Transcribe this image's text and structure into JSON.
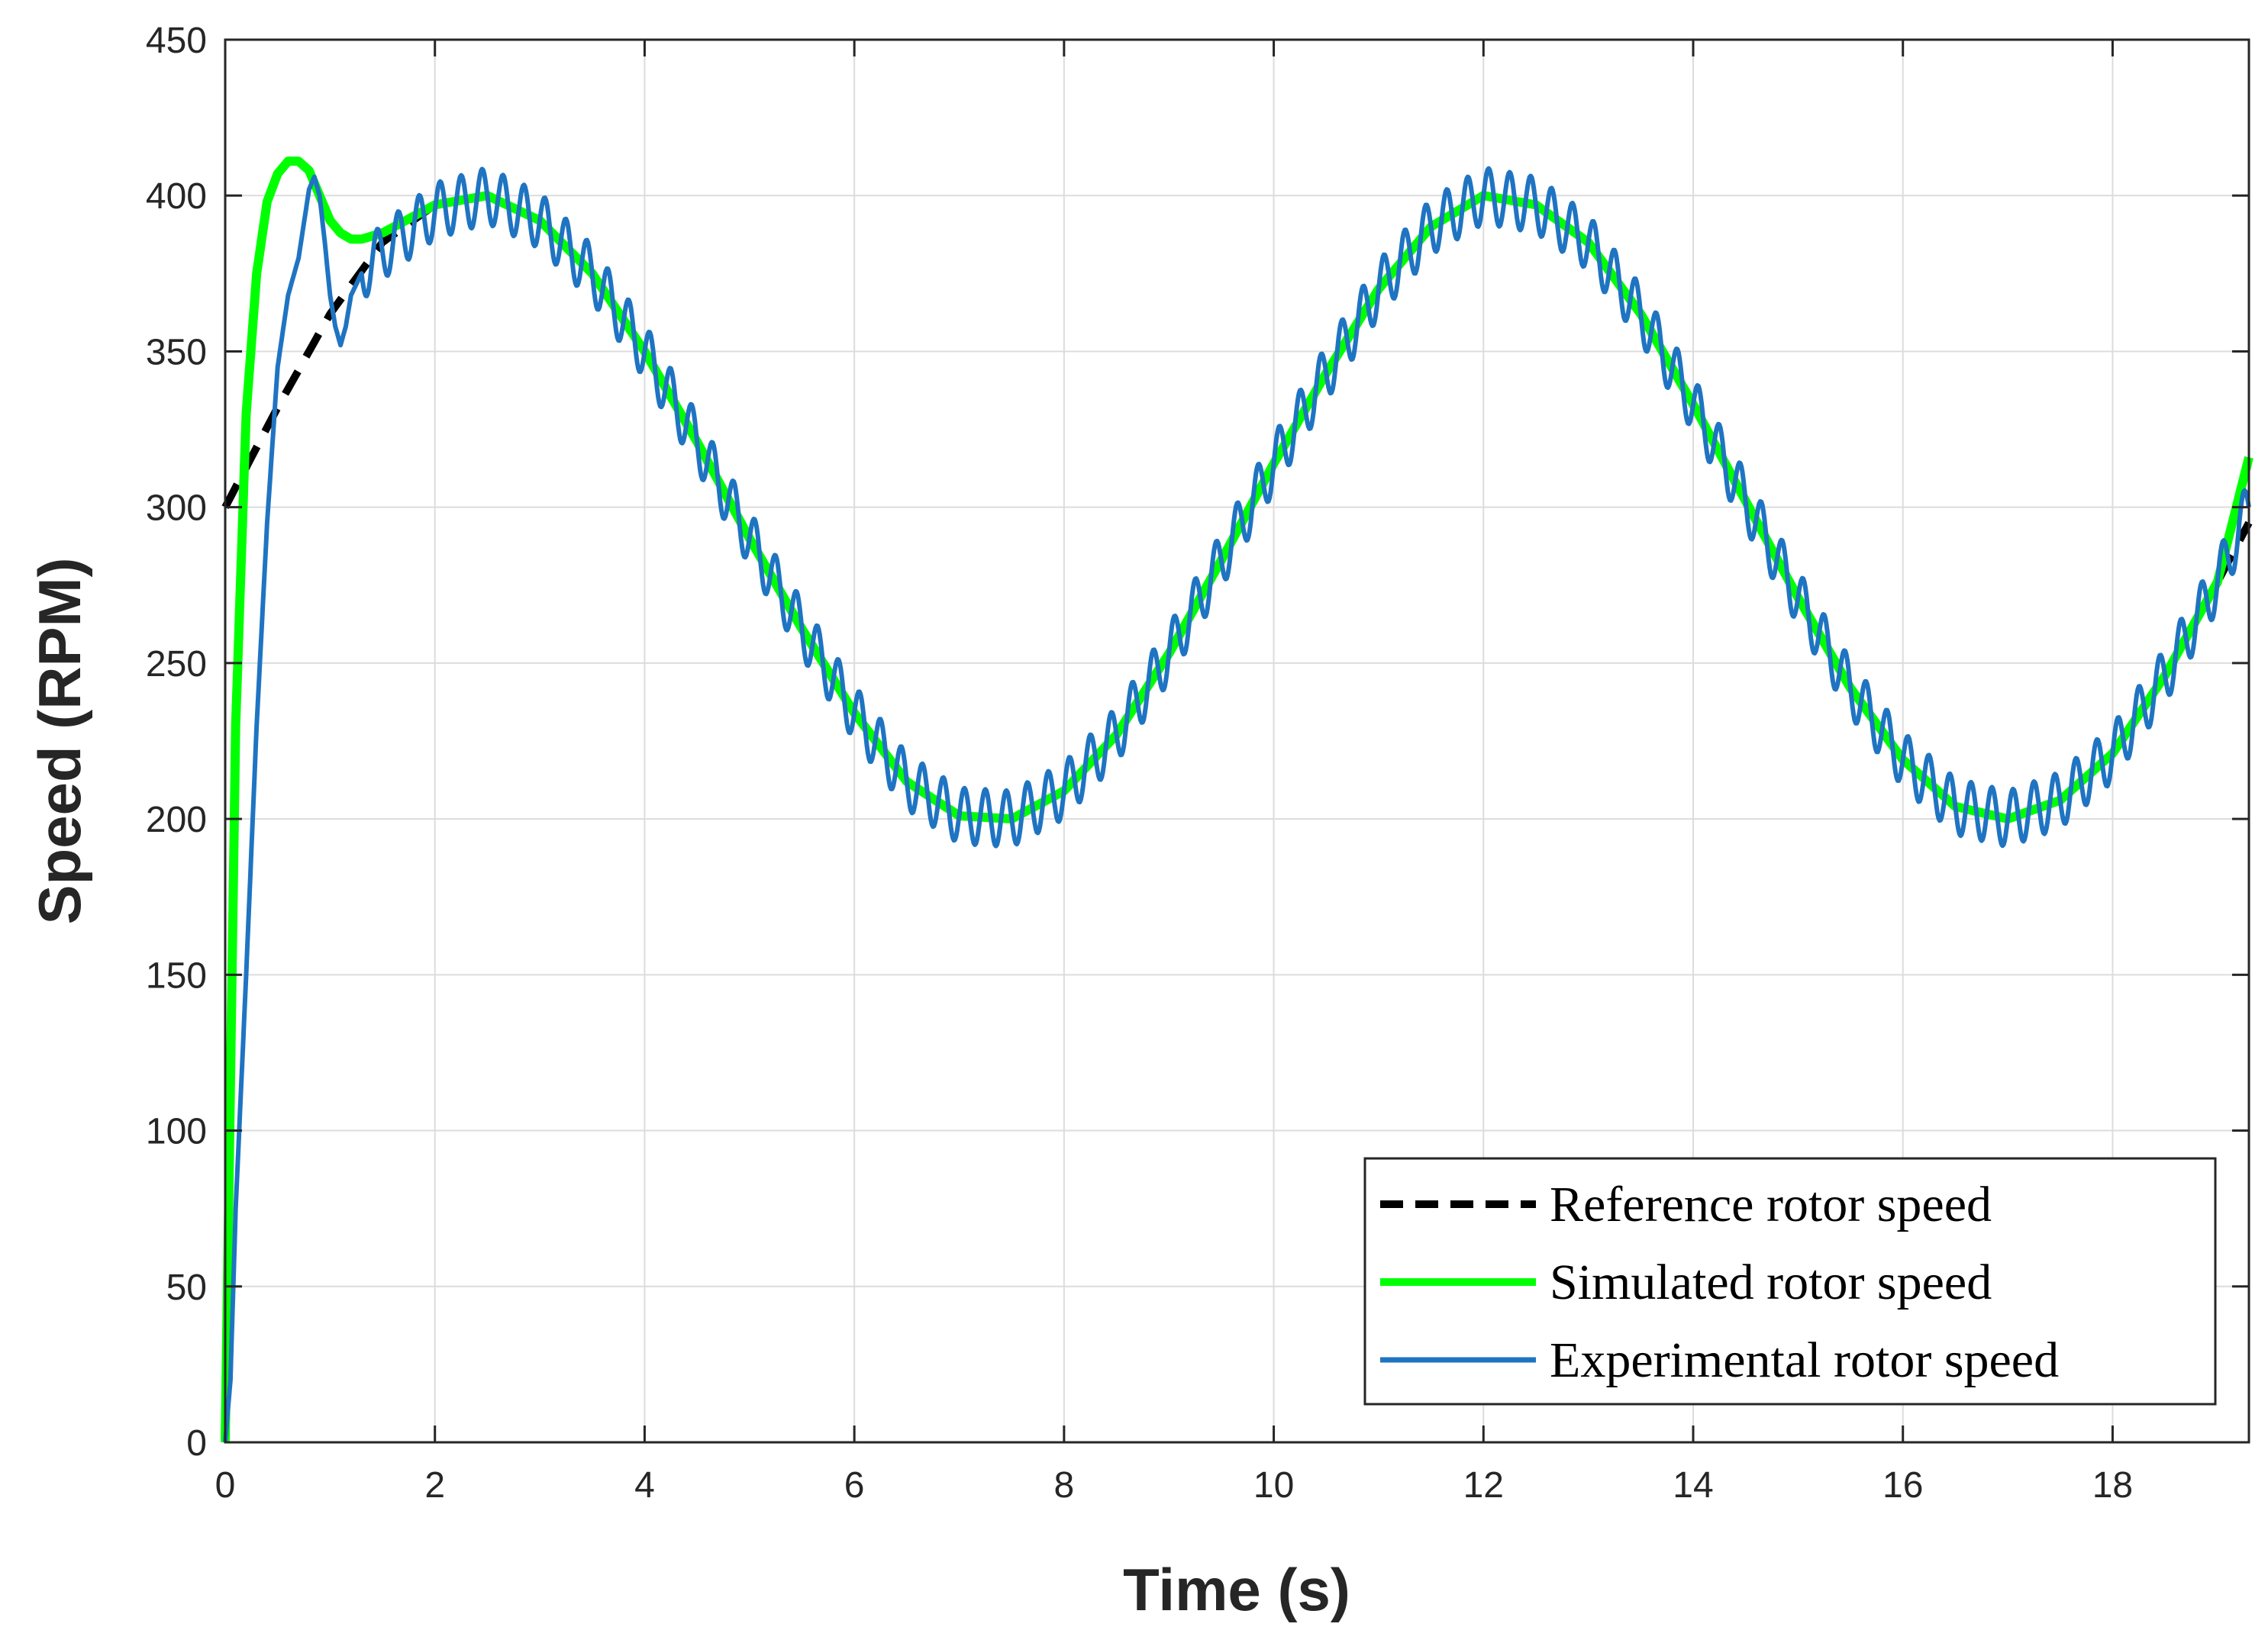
{
  "chart_data": {
    "type": "line",
    "title": "",
    "xlabel": "Time (s)",
    "ylabel": "Speed (RPM)",
    "xlim": [
      0,
      19.3
    ],
    "ylim": [
      0,
      450
    ],
    "grid": true,
    "x_ticks": [
      0,
      2,
      4,
      6,
      8,
      10,
      12,
      14,
      16,
      18
    ],
    "y_ticks": [
      0,
      50,
      100,
      150,
      200,
      250,
      300,
      350,
      400,
      450
    ],
    "legend_position": "bottom-right",
    "series": [
      {
        "name": "Reference rotor speed",
        "color": "#000000",
        "style": "dashed",
        "x": [
          0,
          0.5,
          1.0,
          1.5,
          2.0,
          2.5,
          3.0,
          3.5,
          4.0,
          4.5,
          5.0,
          5.5,
          6.0,
          6.5,
          7.0,
          7.5,
          8.0,
          8.5,
          9.0,
          9.5,
          10.0,
          10.5,
          11.0,
          11.5,
          12.0,
          12.5,
          13.0,
          13.5,
          14.0,
          14.5,
          15.0,
          15.5,
          16.0,
          16.5,
          17.0,
          17.5,
          18.0,
          18.5,
          19.0,
          19.3
        ],
        "y": [
          300,
          332,
          362,
          385,
          397,
          400,
          392,
          375,
          350,
          321,
          290,
          261,
          234,
          212,
          201,
          200,
          209,
          227,
          253,
          283,
          314,
          343,
          370,
          390,
          400,
          397,
          385,
          362,
          333,
          302,
          271,
          242,
          219,
          204,
          200,
          206,
          221,
          246,
          276,
          295
        ]
      },
      {
        "name": "Simulated rotor speed",
        "color": "#00ff00",
        "style": "solid",
        "x": [
          0,
          0.1,
          0.2,
          0.3,
          0.4,
          0.5,
          0.6,
          0.7,
          0.8,
          0.9,
          1.0,
          1.1,
          1.2,
          1.3,
          1.5,
          2.0,
          2.5,
          3.0,
          3.5,
          4.0,
          4.5,
          5.0,
          5.5,
          6.0,
          6.5,
          7.0,
          7.5,
          8.0,
          8.5,
          9.0,
          9.5,
          10.0,
          10.5,
          11.0,
          11.5,
          12.0,
          12.5,
          13.0,
          13.5,
          14.0,
          14.5,
          15.0,
          15.5,
          16.0,
          16.5,
          17.0,
          17.5,
          18.0,
          18.5,
          19.0,
          19.3
        ],
        "y": [
          0,
          230,
          330,
          375,
          398,
          407,
          411,
          411,
          408,
          400,
          392,
          388,
          386,
          386,
          388,
          397,
          400,
          392,
          375,
          350,
          321,
          290,
          261,
          234,
          212,
          201,
          200,
          209,
          227,
          253,
          283,
          314,
          343,
          370,
          390,
          400,
          397,
          385,
          362,
          333,
          302,
          271,
          242,
          219,
          204,
          200,
          206,
          221,
          246,
          276,
          316
        ]
      },
      {
        "name": "Experimental rotor speed",
        "color": "#1f74c2",
        "style": "solid",
        "x": [
          0,
          0.05,
          0.1,
          0.2,
          0.3,
          0.4,
          0.5,
          0.6,
          0.7,
          0.8,
          0.85,
          0.9,
          0.95,
          1.0,
          1.05,
          1.1,
          1.15,
          1.2,
          1.3,
          1.5,
          2.0,
          2.5,
          3.0,
          3.5,
          4.0,
          4.5,
          5.0,
          5.5,
          6.0,
          6.5,
          7.0,
          7.5,
          8.0,
          8.5,
          9.0,
          9.5,
          10.0,
          10.5,
          11.0,
          11.5,
          12.0,
          12.5,
          13.0,
          13.5,
          14.0,
          14.5,
          15.0,
          15.5,
          16.0,
          16.5,
          17.0,
          17.5,
          18.0,
          18.5,
          19.0,
          19.3
        ],
        "y": [
          0,
          20,
          75,
          150,
          230,
          295,
          345,
          368,
          380,
          402,
          406,
          400,
          385,
          368,
          358,
          352,
          358,
          368,
          375,
          382,
          395,
          400,
          392,
          375,
          350,
          321,
          290,
          261,
          234,
          212,
          201,
          200,
          209,
          227,
          253,
          283,
          314,
          343,
          370,
          390,
          400,
          397,
          385,
          362,
          333,
          302,
          271,
          242,
          219,
          204,
          200,
          206,
          221,
          246,
          276,
          300
        ],
        "oscillation_amplitude_rpm": 9,
        "oscillation_period_s": 0.2
      }
    ]
  }
}
